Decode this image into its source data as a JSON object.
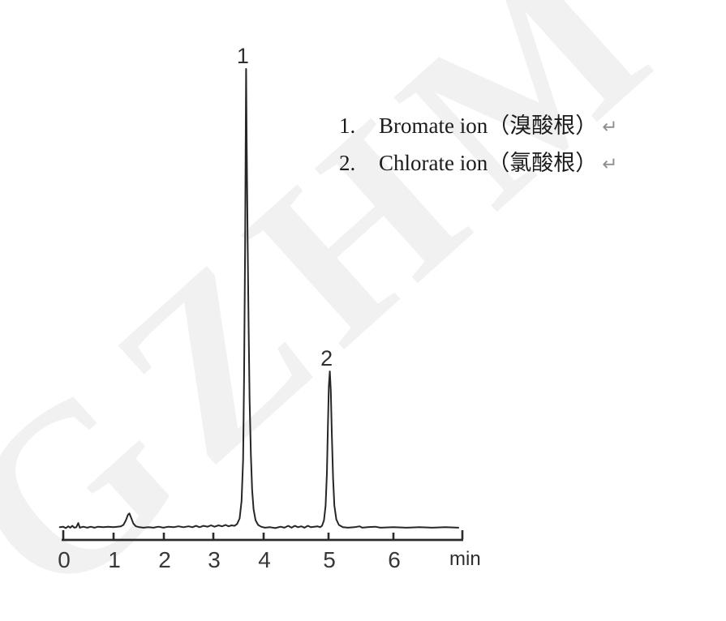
{
  "watermark": {
    "text": "GZHM",
    "color": "#f1f1f1"
  },
  "legend": {
    "items": [
      {
        "number": "1.",
        "label": "Bromate ion（溴酸根）",
        "return_mark": "↵"
      },
      {
        "number": "2.",
        "label": "Chlorate ion（氯酸根）",
        "return_mark": "↵"
      }
    ]
  },
  "chart_data": {
    "type": "line",
    "subtype": "ion-chromatogram",
    "title": "",
    "xlabel": "min",
    "ylabel": "",
    "grid": false,
    "legend_position": "upper-right",
    "x_ticks": [
      0,
      1,
      2,
      3,
      4,
      5,
      6
    ],
    "xlim": [
      0,
      7.06
    ],
    "ylim_relative": [
      0,
      1.05
    ],
    "peaks": [
      {
        "id": "1",
        "name": "Bromate ion",
        "name_zh": "溴酸根",
        "retention_min": 3.65,
        "rel_height": 1.0
      },
      {
        "id": "2",
        "name": "Chlorate ion",
        "name_zh": "氯酸根",
        "retention_min": 5.02,
        "rel_height": 0.342
      }
    ],
    "minor_features": [
      {
        "retention_min": 1.32,
        "rel_height": 0.033,
        "label": "unlabeled baseline disturbance"
      }
    ],
    "trace": [
      [
        -0.07,
        0.003
      ],
      [
        0.0,
        0.004
      ],
      [
        0.05,
        0.001
      ],
      [
        0.1,
        0.005
      ],
      [
        0.14,
        0.002
      ],
      [
        0.18,
        0.006
      ],
      [
        0.22,
        0.002
      ],
      [
        0.26,
        0.003
      ],
      [
        0.3,
        0.012
      ],
      [
        0.33,
        0.002
      ],
      [
        0.4,
        0.004
      ],
      [
        0.48,
        0.002
      ],
      [
        0.55,
        0.004
      ],
      [
        0.62,
        0.002
      ],
      [
        0.7,
        0.004
      ],
      [
        0.8,
        0.003
      ],
      [
        0.9,
        0.004
      ],
      [
        1.0,
        0.003
      ],
      [
        1.08,
        0.004
      ],
      [
        1.15,
        0.005
      ],
      [
        1.2,
        0.008
      ],
      [
        1.25,
        0.018
      ],
      [
        1.29,
        0.03
      ],
      [
        1.32,
        0.033
      ],
      [
        1.36,
        0.022
      ],
      [
        1.4,
        0.011
      ],
      [
        1.45,
        0.005
      ],
      [
        1.52,
        0.003
      ],
      [
        1.6,
        0.002
      ],
      [
        1.7,
        0.003
      ],
      [
        1.8,
        0.002
      ],
      [
        1.9,
        0.004
      ],
      [
        2.0,
        0.002
      ],
      [
        2.1,
        0.004
      ],
      [
        2.2,
        0.003
      ],
      [
        2.3,
        0.005
      ],
      [
        2.4,
        0.003
      ],
      [
        2.5,
        0.005
      ],
      [
        2.58,
        0.003
      ],
      [
        2.65,
        0.006
      ],
      [
        2.72,
        0.003
      ],
      [
        2.8,
        0.006
      ],
      [
        2.88,
        0.004
      ],
      [
        2.95,
        0.007
      ],
      [
        3.02,
        0.004
      ],
      [
        3.1,
        0.007
      ],
      [
        3.17,
        0.005
      ],
      [
        3.24,
        0.008
      ],
      [
        3.3,
        0.005
      ],
      [
        3.36,
        0.007
      ],
      [
        3.42,
        0.006
      ],
      [
        3.47,
        0.01
      ],
      [
        3.52,
        0.022
      ],
      [
        3.56,
        0.06
      ],
      [
        3.59,
        0.15
      ],
      [
        3.61,
        0.33
      ],
      [
        3.63,
        0.62
      ],
      [
        3.64,
        0.82
      ],
      [
        3.65,
        1.0
      ],
      [
        3.66,
        0.86
      ],
      [
        3.68,
        0.64
      ],
      [
        3.7,
        0.44
      ],
      [
        3.72,
        0.28
      ],
      [
        3.745,
        0.16
      ],
      [
        3.77,
        0.085
      ],
      [
        3.8,
        0.042
      ],
      [
        3.84,
        0.018
      ],
      [
        3.89,
        0.008
      ],
      [
        3.95,
        0.004
      ],
      [
        4.02,
        0.002
      ],
      [
        4.1,
        0.003
      ],
      [
        4.18,
        0.001
      ],
      [
        4.26,
        0.004
      ],
      [
        4.32,
        0.002
      ],
      [
        4.38,
        0.006
      ],
      [
        4.43,
        0.002
      ],
      [
        4.48,
        0.006
      ],
      [
        4.53,
        0.003
      ],
      [
        4.58,
        0.005
      ],
      [
        4.63,
        0.002
      ],
      [
        4.68,
        0.006
      ],
      [
        4.73,
        0.003
      ],
      [
        4.78,
        0.004
      ],
      [
        4.83,
        0.005
      ],
      [
        4.87,
        0.003
      ],
      [
        4.9,
        0.006
      ],
      [
        4.93,
        0.018
      ],
      [
        4.955,
        0.05
      ],
      [
        4.975,
        0.12
      ],
      [
        4.99,
        0.22
      ],
      [
        5.005,
        0.31
      ],
      [
        5.02,
        0.342
      ],
      [
        5.035,
        0.3
      ],
      [
        5.05,
        0.21
      ],
      [
        5.07,
        0.11
      ],
      [
        5.09,
        0.05
      ],
      [
        5.12,
        0.02
      ],
      [
        5.16,
        0.008
      ],
      [
        5.22,
        0.003
      ],
      [
        5.3,
        0.002
      ],
      [
        5.4,
        0.003
      ],
      [
        5.48,
        0.005
      ],
      [
        5.52,
        0.002
      ],
      [
        5.6,
        0.003
      ],
      [
        5.72,
        0.004
      ],
      [
        5.8,
        0.002
      ],
      [
        6.0,
        0.003
      ],
      [
        6.2,
        0.002
      ],
      [
        6.4,
        0.003
      ],
      [
        6.6,
        0.002
      ],
      [
        6.8,
        0.003
      ],
      [
        7.0,
        0.002
      ]
    ]
  }
}
